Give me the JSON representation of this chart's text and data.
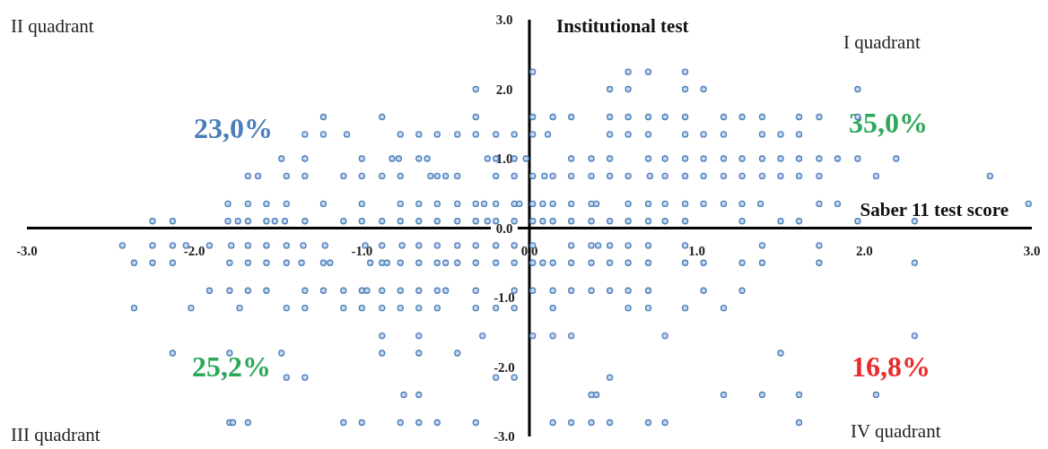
{
  "chart_data": {
    "type": "scatter",
    "xlabel": "Saber 11 test score",
    "ylabel": "Institutional test",
    "annotations": [
      "II quadrant",
      "I quadrant",
      "III quadrant",
      "IV quadrant",
      "23,0%",
      "35,0%",
      "25,2%",
      "16,8%"
    ],
    "xlim": [
      -3,
      3
    ],
    "ylim": [
      -3,
      3
    ],
    "xticks": [
      {
        "value": -3,
        "label": "-3.0"
      },
      {
        "value": -2,
        "label": "-2.0"
      },
      {
        "value": -1,
        "label": "-1.0"
      },
      {
        "value": 0,
        "label": "0.0"
      },
      {
        "value": 1,
        "label": "1.0"
      },
      {
        "value": 2,
        "label": "2.0"
      },
      {
        "value": 3,
        "label": "3.0"
      }
    ],
    "yticks": [
      {
        "value": -3,
        "label": "-3.0"
      },
      {
        "value": -2,
        "label": "-2.0"
      },
      {
        "value": -1,
        "label": "-1.0"
      },
      {
        "value": 0,
        "label": "0.0"
      },
      {
        "value": 1,
        "label": "1.0"
      },
      {
        "value": 2,
        "label": "2.0"
      },
      {
        "value": 3,
        "label": "3.0"
      }
    ],
    "grid": false,
    "marker": "circle",
    "series": [
      {
        "color": "#4a7ebb",
        "x": [
          0.02,
          0.59,
          0.71,
          0.93,
          -0.32,
          0.48,
          0.59,
          0.93,
          1.04,
          1.96,
          -1.23,
          -0.88,
          -0.32,
          0.02,
          0.14,
          0.25,
          0.48,
          0.59,
          0.71,
          0.81,
          0.93,
          1.16,
          1.27,
          1.39,
          1.61,
          1.73,
          1.96,
          -1.34,
          -1.23,
          -1.09,
          -0.77,
          -0.66,
          -0.55,
          -0.43,
          -0.32,
          -0.2,
          -0.09,
          0.02,
          0.11,
          0.48,
          0.59,
          0.71,
          0.93,
          1.04,
          1.16,
          1.39,
          1.5,
          1.61,
          -1.48,
          -1.34,
          -1.0,
          -0.82,
          -0.78,
          -0.66,
          -0.61,
          -0.25,
          -0.2,
          -0.09,
          -0.02,
          0.25,
          0.37,
          0.48,
          0.71,
          0.81,
          0.93,
          1.04,
          1.16,
          1.27,
          1.39,
          1.5,
          1.61,
          1.73,
          1.84,
          1.96,
          2.19,
          -1.68,
          -1.62,
          -1.45,
          -1.34,
          -1.11,
          -1.0,
          -0.88,
          -0.77,
          -0.59,
          -0.55,
          -0.5,
          -0.43,
          -0.2,
          -0.09,
          0.02,
          0.09,
          0.14,
          0.25,
          0.37,
          0.48,
          0.59,
          0.72,
          0.81,
          0.93,
          1.04,
          1.16,
          1.27,
          1.39,
          1.5,
          1.61,
          1.73,
          2.07,
          2.75,
          -1.8,
          -1.68,
          -1.57,
          -1.45,
          -1.23,
          -1.0,
          -0.77,
          -0.66,
          -0.55,
          -0.43,
          -0.32,
          -0.27,
          -0.2,
          -0.09,
          -0.06,
          0.02,
          0.08,
          0.14,
          0.25,
          0.37,
          0.4,
          0.59,
          0.71,
          0.81,
          0.93,
          1.04,
          1.16,
          1.27,
          1.38,
          1.73,
          1.84,
          2.98,
          -2.25,
          -2.13,
          -1.8,
          -1.74,
          -1.68,
          -1.57,
          -1.52,
          -1.46,
          -1.34,
          -1.11,
          -1.0,
          -0.88,
          -0.77,
          -0.66,
          -0.55,
          -0.43,
          -0.32,
          -0.25,
          -0.2,
          -0.09,
          0.02,
          0.08,
          0.14,
          0.25,
          0.37,
          0.48,
          0.59,
          0.71,
          0.81,
          0.93,
          1.27,
          1.5,
          1.61,
          1.96,
          2.3,
          -2.43,
          -2.25,
          -2.13,
          -2.05,
          -1.91,
          -1.78,
          -1.68,
          -1.57,
          -1.45,
          -1.35,
          -1.22,
          -0.98,
          -0.88,
          -0.76,
          -0.66,
          -0.55,
          -0.43,
          -0.32,
          -0.2,
          -0.09,
          0.02,
          0.25,
          0.37,
          0.41,
          0.48,
          0.59,
          0.71,
          0.93,
          1.39,
          1.73,
          -2.36,
          -2.25,
          -2.13,
          -1.79,
          -1.68,
          -1.57,
          -1.45,
          -1.36,
          -1.23,
          -1.19,
          -0.95,
          -0.88,
          -0.85,
          -0.77,
          -0.66,
          -0.55,
          -0.5,
          -0.43,
          -0.32,
          -0.2,
          -0.09,
          0.02,
          0.08,
          0.14,
          0.25,
          0.37,
          0.48,
          0.59,
          0.71,
          0.93,
          1.04,
          1.27,
          1.39,
          1.73,
          2.3,
          -1.91,
          -1.79,
          -1.68,
          -1.57,
          -1.34,
          -1.23,
          -1.11,
          -1.0,
          -0.97,
          -0.88,
          -0.77,
          -0.66,
          -0.55,
          -0.5,
          -0.32,
          -0.09,
          0.02,
          0.14,
          0.25,
          0.37,
          0.48,
          0.59,
          0.71,
          1.04,
          1.27,
          -2.36,
          -2.02,
          -1.73,
          -1.45,
          -1.34,
          -1.11,
          -1.0,
          -0.88,
          -0.77,
          -0.66,
          -0.55,
          -0.32,
          -0.2,
          -0.09,
          0.14,
          0.59,
          0.71,
          0.93,
          1.16,
          -0.88,
          -0.66,
          -0.28,
          0.02,
          0.14,
          0.25,
          0.81,
          2.3,
          -2.13,
          -1.79,
          -1.48,
          -0.88,
          -0.66,
          -0.43,
          1.5,
          -1.45,
          -1.34,
          -0.2,
          -0.09,
          0.48,
          -0.75,
          -0.66,
          0.37,
          0.4,
          1.16,
          1.39,
          1.61,
          2.07,
          -1.79,
          -1.77,
          -1.68,
          -1.11,
          -1.0,
          -0.77,
          -0.66,
          -0.55,
          -0.32,
          0.14,
          0.25,
          0.37,
          0.48,
          0.71,
          0.81,
          1.61
        ],
        "values": [
          2.25,
          2.25,
          2.25,
          2.25,
          2.0,
          2.0,
          2.0,
          2.0,
          2.0,
          2.0,
          1.6,
          1.6,
          1.6,
          1.6,
          1.6,
          1.6,
          1.6,
          1.6,
          1.6,
          1.6,
          1.6,
          1.6,
          1.6,
          1.6,
          1.6,
          1.6,
          1.6,
          1.35,
          1.35,
          1.35,
          1.35,
          1.35,
          1.35,
          1.35,
          1.35,
          1.35,
          1.35,
          1.35,
          1.35,
          1.35,
          1.35,
          1.35,
          1.35,
          1.35,
          1.35,
          1.35,
          1.35,
          1.35,
          1.0,
          1.0,
          1.0,
          1.0,
          1.0,
          1.0,
          1.0,
          1.0,
          1.0,
          1.0,
          1.0,
          1.0,
          1.0,
          1.0,
          1.0,
          1.0,
          1.0,
          1.0,
          1.0,
          1.0,
          1.0,
          1.0,
          1.0,
          1.0,
          1.0,
          1.0,
          1.0,
          0.75,
          0.75,
          0.75,
          0.75,
          0.75,
          0.75,
          0.75,
          0.75,
          0.75,
          0.75,
          0.75,
          0.75,
          0.75,
          0.75,
          0.75,
          0.75,
          0.75,
          0.75,
          0.75,
          0.75,
          0.75,
          0.75,
          0.75,
          0.75,
          0.75,
          0.75,
          0.75,
          0.75,
          0.75,
          0.75,
          0.75,
          0.75,
          0.75,
          0.35,
          0.35,
          0.35,
          0.35,
          0.35,
          0.35,
          0.35,
          0.35,
          0.35,
          0.35,
          0.35,
          0.35,
          0.35,
          0.35,
          0.35,
          0.35,
          0.35,
          0.35,
          0.35,
          0.35,
          0.35,
          0.35,
          0.35,
          0.35,
          0.35,
          0.35,
          0.35,
          0.35,
          0.35,
          0.35,
          0.35,
          0.35,
          0.1,
          0.1,
          0.1,
          0.1,
          0.1,
          0.1,
          0.1,
          0.1,
          0.1,
          0.1,
          0.1,
          0.1,
          0.1,
          0.1,
          0.1,
          0.1,
          0.1,
          0.1,
          0.1,
          0.1,
          0.1,
          0.1,
          0.1,
          0.1,
          0.1,
          0.1,
          0.1,
          0.1,
          0.1,
          0.1,
          0.1,
          0.1,
          0.1,
          0.1,
          0.1,
          -0.25,
          -0.25,
          -0.25,
          -0.25,
          -0.25,
          -0.25,
          -0.25,
          -0.25,
          -0.25,
          -0.25,
          -0.25,
          -0.25,
          -0.25,
          -0.25,
          -0.25,
          -0.25,
          -0.25,
          -0.25,
          -0.25,
          -0.25,
          -0.25,
          -0.25,
          -0.25,
          -0.25,
          -0.25,
          -0.25,
          -0.25,
          -0.25,
          -0.25,
          -0.25,
          -0.5,
          -0.5,
          -0.5,
          -0.5,
          -0.5,
          -0.5,
          -0.5,
          -0.5,
          -0.5,
          -0.5,
          -0.5,
          -0.5,
          -0.5,
          -0.5,
          -0.5,
          -0.5,
          -0.5,
          -0.5,
          -0.5,
          -0.5,
          -0.5,
          -0.5,
          -0.5,
          -0.5,
          -0.5,
          -0.5,
          -0.5,
          -0.5,
          -0.5,
          -0.5,
          -0.5,
          -0.5,
          -0.5,
          -0.5,
          -0.5,
          -0.9,
          -0.9,
          -0.9,
          -0.9,
          -0.9,
          -0.9,
          -0.9,
          -0.9,
          -0.9,
          -0.9,
          -0.9,
          -0.9,
          -0.9,
          -0.9,
          -0.9,
          -0.9,
          -0.9,
          -0.9,
          -0.9,
          -0.9,
          -0.9,
          -0.9,
          -0.9,
          -0.9,
          -0.9,
          -1.15,
          -1.15,
          -1.15,
          -1.15,
          -1.15,
          -1.15,
          -1.15,
          -1.15,
          -1.15,
          -1.15,
          -1.15,
          -1.15,
          -1.15,
          -1.15,
          -1.15,
          -1.15,
          -1.15,
          -1.15,
          -1.15,
          -1.55,
          -1.55,
          -1.55,
          -1.55,
          -1.55,
          -1.55,
          -1.55,
          -1.55,
          -1.8,
          -1.8,
          -1.8,
          -1.8,
          -1.8,
          -1.8,
          -1.8,
          -2.15,
          -2.15,
          -2.15,
          -2.15,
          -2.15,
          -2.4,
          -2.4,
          -2.4,
          -2.4,
          -2.4,
          -2.4,
          -2.4,
          -2.4,
          -2.8,
          -2.8,
          -2.8,
          -2.8,
          -2.8,
          -2.8,
          -2.8,
          -2.8,
          -2.8,
          -2.8,
          -2.8,
          -2.8,
          -2.8,
          -2.8,
          -2.8,
          -2.8
        ]
      }
    ]
  }
}
